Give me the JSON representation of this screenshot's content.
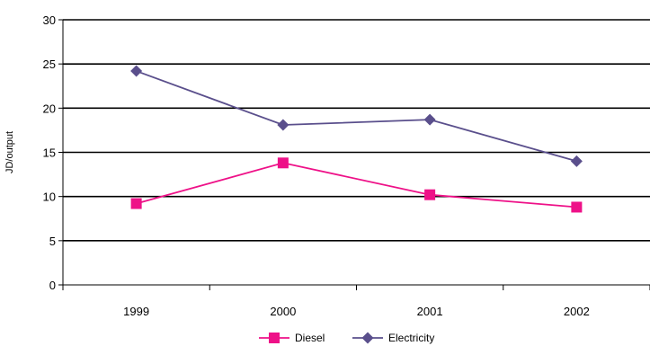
{
  "chart_data": {
    "type": "line",
    "title": "",
    "xlabel": "",
    "ylabel": "JD/output",
    "categories": [
      "1999",
      "2000",
      "2001",
      "2002"
    ],
    "ylim": [
      0,
      30
    ],
    "yticks": [
      0,
      5,
      10,
      15,
      20,
      25,
      30
    ],
    "grid": true,
    "legend": "bottom",
    "series": [
      {
        "name": "Diesel",
        "values": [
          9.2,
          13.8,
          10.2,
          8.8
        ],
        "color": "#ee1188",
        "marker": "square"
      },
      {
        "name": "Electricity",
        "values": [
          24.2,
          18.1,
          18.7,
          14.0
        ],
        "color": "#5a4f8c",
        "marker": "diamond"
      }
    ]
  }
}
